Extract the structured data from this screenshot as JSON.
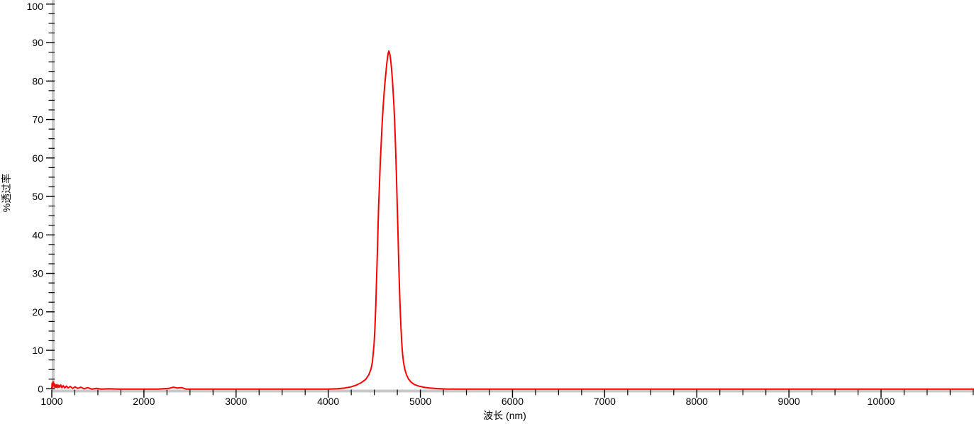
{
  "chart_data": {
    "type": "line",
    "title": "",
    "xlabel": "波长 (nm)",
    "ylabel": "%透过率",
    "xlim": [
      1000,
      11010
    ],
    "ylim": [
      0,
      100
    ],
    "grid": false,
    "legend": "none",
    "axis_color": "#c8c8c8",
    "tick_color": "#000000",
    "x_axis": {
      "major_ticks": [
        1000,
        2000,
        3000,
        4000,
        5000,
        6000,
        7000,
        8000,
        9000,
        10000
      ],
      "major_tick_labels": [
        "1000",
        "2000",
        "3000",
        "4000",
        "5000",
        "6000",
        "7000",
        "8000",
        "9000",
        "10000"
      ],
      "minor_tick_step": 250
    },
    "y_axis": {
      "major_ticks": [
        0,
        10,
        20,
        30,
        40,
        50,
        60,
        70,
        80,
        90,
        100
      ],
      "major_tick_labels": [
        "0",
        "10",
        "20",
        "30",
        "40",
        "50",
        "60",
        "70",
        "80",
        "90",
        "100"
      ],
      "minor_tick_step": 2.5
    },
    "peak": {
      "wavelength_nm": 4656,
      "transmittance_pct": 87.8
    },
    "series": [
      {
        "name": "transmittance",
        "color": "#ff0000",
        "stroke_width": 2,
        "points": [
          [
            1000,
            0.2
          ],
          [
            1005,
            1.5
          ],
          [
            1010,
            0.5
          ],
          [
            1016,
            1.8
          ],
          [
            1022,
            0.8
          ],
          [
            1028,
            1.3
          ],
          [
            1035,
            0.3
          ],
          [
            1042,
            1.0
          ],
          [
            1050,
            0.4
          ],
          [
            1058,
            1.1
          ],
          [
            1066,
            0.3
          ],
          [
            1076,
            0.9
          ],
          [
            1086,
            0.4
          ],
          [
            1098,
            1.0
          ],
          [
            1110,
            0.3
          ],
          [
            1124,
            0.8
          ],
          [
            1140,
            0.2
          ],
          [
            1158,
            0.7
          ],
          [
            1178,
            0.2
          ],
          [
            1200,
            0.6
          ],
          [
            1225,
            0.1
          ],
          [
            1252,
            0.5
          ],
          [
            1282,
            0.1
          ],
          [
            1315,
            0.4
          ],
          [
            1350,
            0.0
          ],
          [
            1390,
            0.3
          ],
          [
            1435,
            -0.1
          ],
          [
            1485,
            0.1
          ],
          [
            1540,
            -0.1
          ],
          [
            1620,
            0.0
          ],
          [
            1720,
            -0.1
          ],
          [
            1850,
            -0.1
          ],
          [
            2000,
            -0.1
          ],
          [
            2150,
            -0.1
          ],
          [
            2270,
            0.1
          ],
          [
            2320,
            0.4
          ],
          [
            2360,
            0.2
          ],
          [
            2410,
            0.3
          ],
          [
            2460,
            -0.1
          ],
          [
            2600,
            -0.1
          ],
          [
            2800,
            -0.1
          ],
          [
            3000,
            -0.1
          ],
          [
            3200,
            -0.1
          ],
          [
            3400,
            -0.1
          ],
          [
            3600,
            -0.1
          ],
          [
            3800,
            -0.1
          ],
          [
            4000,
            -0.1
          ],
          [
            4100,
            0.0
          ],
          [
            4180,
            0.2
          ],
          [
            4250,
            0.5
          ],
          [
            4310,
            1.0
          ],
          [
            4360,
            1.6
          ],
          [
            4405,
            2.4
          ],
          [
            4440,
            3.6
          ],
          [
            4465,
            5.2
          ],
          [
            4480,
            7.0
          ],
          [
            4490,
            9.5
          ],
          [
            4498,
            12
          ],
          [
            4505,
            15
          ],
          [
            4511,
            18
          ],
          [
            4517,
            22
          ],
          [
            4523,
            27
          ],
          [
            4529,
            32
          ],
          [
            4535,
            37
          ],
          [
            4541,
            42
          ],
          [
            4548,
            48
          ],
          [
            4556,
            53
          ],
          [
            4565,
            59
          ],
          [
            4575,
            64
          ],
          [
            4585,
            69
          ],
          [
            4595,
            73
          ],
          [
            4605,
            76.5
          ],
          [
            4615,
            79.5
          ],
          [
            4625,
            82
          ],
          [
            4635,
            84.5
          ],
          [
            4645,
            86.3
          ],
          [
            4652,
            87.4
          ],
          [
            4658,
            87.8
          ],
          [
            4665,
            87.4
          ],
          [
            4672,
            86.5
          ],
          [
            4680,
            85
          ],
          [
            4688,
            83
          ],
          [
            4696,
            80.5
          ],
          [
            4704,
            77.5
          ],
          [
            4712,
            74
          ],
          [
            4720,
            70
          ],
          [
            4727,
            65.5
          ],
          [
            4734,
            60.5
          ],
          [
            4741,
            55
          ],
          [
            4747,
            49.5
          ],
          [
            4753,
            44
          ],
          [
            4759,
            38.5
          ],
          [
            4765,
            33
          ],
          [
            4771,
            28
          ],
          [
            4777,
            23.5
          ],
          [
            4783,
            19.5
          ],
          [
            4790,
            15.5
          ],
          [
            4798,
            12
          ],
          [
            4807,
            9
          ],
          [
            4818,
            6.8
          ],
          [
            4832,
            5
          ],
          [
            4850,
            3.6
          ],
          [
            4872,
            2.5
          ],
          [
            4900,
            1.7
          ],
          [
            4935,
            1.1
          ],
          [
            4980,
            0.7
          ],
          [
            5035,
            0.4
          ],
          [
            5100,
            0.2
          ],
          [
            5180,
            0.05
          ],
          [
            5280,
            -0.05
          ],
          [
            5400,
            -0.1
          ],
          [
            5600,
            -0.1
          ],
          [
            5900,
            -0.1
          ],
          [
            6300,
            -0.1
          ],
          [
            6800,
            -0.1
          ],
          [
            7400,
            -0.1
          ],
          [
            8000,
            -0.1
          ],
          [
            8600,
            -0.1
          ],
          [
            9200,
            -0.1
          ],
          [
            9800,
            -0.1
          ],
          [
            10400,
            -0.1
          ],
          [
            11010,
            -0.1
          ]
        ]
      }
    ]
  }
}
